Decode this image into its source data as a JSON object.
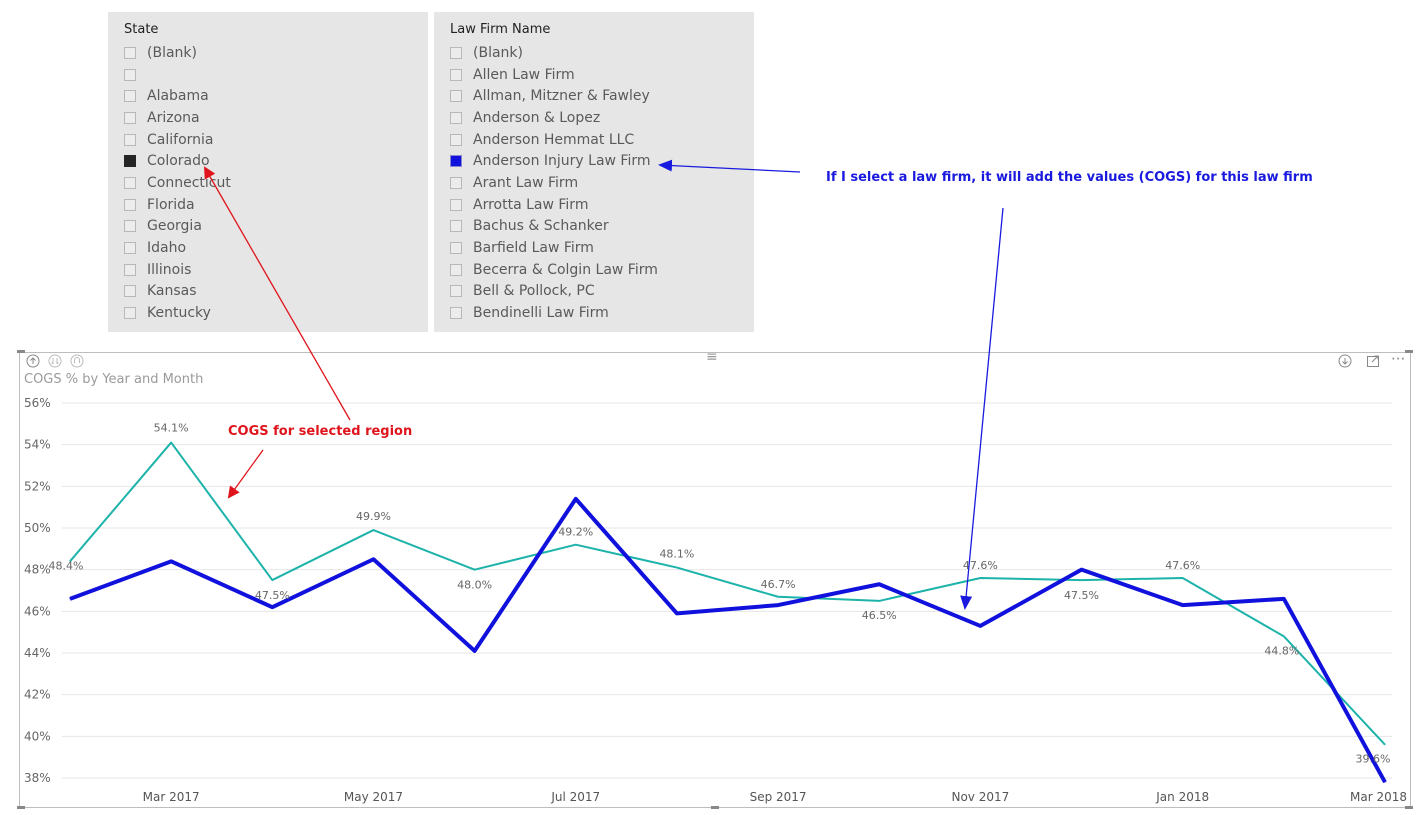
{
  "state_slicer": {
    "title": "State",
    "items": [
      {
        "label": "(Blank)",
        "checked": false
      },
      {
        "label": "",
        "checked": false
      },
      {
        "label": "Alabama",
        "checked": false
      },
      {
        "label": "Arizona",
        "checked": false
      },
      {
        "label": "California",
        "checked": false
      },
      {
        "label": "Colorado",
        "checked": true
      },
      {
        "label": "Connecticut",
        "checked": false
      },
      {
        "label": "Florida",
        "checked": false
      },
      {
        "label": "Georgia",
        "checked": false
      },
      {
        "label": "Idaho",
        "checked": false
      },
      {
        "label": "Illinois",
        "checked": false
      },
      {
        "label": "Kansas",
        "checked": false
      },
      {
        "label": "Kentucky",
        "checked": false
      }
    ]
  },
  "firm_slicer": {
    "title": "Law Firm Name",
    "items": [
      {
        "label": "(Blank)",
        "checked": false
      },
      {
        "label": "Allen Law Firm",
        "checked": false
      },
      {
        "label": "Allman, Mitzner & Fawley",
        "checked": false
      },
      {
        "label": "Anderson & Lopez",
        "checked": false
      },
      {
        "label": "Anderson Hemmat LLC",
        "checked": false
      },
      {
        "label": "Anderson Injury Law Firm",
        "checked": true
      },
      {
        "label": "Arant Law Firm",
        "checked": false
      },
      {
        "label": "Arrotta Law Firm",
        "checked": false
      },
      {
        "label": "Bachus & Schanker",
        "checked": false
      },
      {
        "label": "Barfield Law Firm",
        "checked": false
      },
      {
        "label": "Becerra & Colgin Law Firm",
        "checked": false
      },
      {
        "label": "Bell & Pollock, PC",
        "checked": false
      },
      {
        "label": "Bendinelli Law Firm",
        "checked": false
      }
    ]
  },
  "visual_header": {
    "left_icons": [
      "drill-up-icon",
      "drill-down-icon",
      "expand-level-icon"
    ],
    "grip": "≡",
    "right_icons": [
      "drill-mode-icon",
      "focus-mode-icon",
      "more-options-icon"
    ],
    "more_glyph": "···"
  },
  "annotations": {
    "red_text": "COGS for selected region",
    "blue_text": "If I select a law firm, it will add the values (COGS) for this law firm",
    "red_color": "#e0141c",
    "blue_color": "#1a1adf"
  },
  "chart_data": {
    "type": "line",
    "title": "COGS % by Year and Month",
    "x": [
      "Feb 2017",
      "Mar 2017",
      "Apr 2017",
      "May 2017",
      "Jun 2017",
      "Jul 2017",
      "Aug 2017",
      "Sep 2017",
      "Oct 2017",
      "Nov 2017",
      "Dec 2017",
      "Jan 2018",
      "Feb 2018",
      "Mar 2018"
    ],
    "x_tick_labels": [
      "Mar 2017",
      "May 2017",
      "Jul 2017",
      "Sep 2017",
      "Nov 2017",
      "Jan 2018",
      "Mar 2018"
    ],
    "y_tick_labels": [
      "56%",
      "54%",
      "52%",
      "50%",
      "48%",
      "46%",
      "44%",
      "42%",
      "40%",
      "38%"
    ],
    "ylim": [
      38,
      56
    ],
    "grid": true,
    "series": [
      {
        "color": "#1db3aa",
        "values": [
          48.4,
          54.1,
          47.5,
          49.9,
          48.0,
          49.2,
          48.1,
          46.7,
          46.5,
          47.6,
          47.5,
          47.6,
          44.8,
          39.6
        ],
        "data_labels": [
          "48.4%",
          "54.1%",
          "47.5%",
          "49.9%",
          "48.0%",
          "49.2%",
          "48.1%",
          "46.7%",
          "46.5%",
          "47.6%",
          "47.5%",
          "47.6%",
          "44.8%",
          "39.6%"
        ]
      },
      {
        "color": "#1111dd",
        "values": [
          46.6,
          48.4,
          46.2,
          48.5,
          44.1,
          51.4,
          45.9,
          46.3,
          47.3,
          45.3,
          48.0,
          46.3,
          46.6,
          37.8
        ]
      }
    ]
  }
}
